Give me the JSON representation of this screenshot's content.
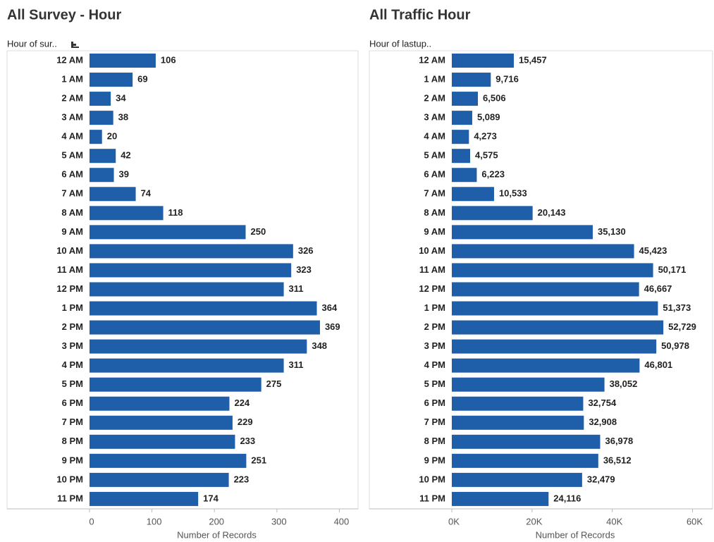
{
  "chart_data": [
    {
      "type": "bar",
      "orientation": "horizontal",
      "title": "All Survey - Hour",
      "ylabel": "Hour of sur..",
      "xlabel": "Number of Records",
      "color": "#1f5ea8",
      "categories": [
        "12 AM",
        "1 AM",
        "2 AM",
        "3 AM",
        "4 AM",
        "5 AM",
        "6 AM",
        "7 AM",
        "8 AM",
        "9 AM",
        "10 AM",
        "11 AM",
        "12 PM",
        "1 PM",
        "2 PM",
        "3 PM",
        "4 PM",
        "5 PM",
        "6 PM",
        "7 PM",
        "8 PM",
        "9 PM",
        "10 PM",
        "11 PM"
      ],
      "values": [
        106,
        69,
        34,
        38,
        20,
        42,
        39,
        74,
        118,
        250,
        326,
        323,
        311,
        364,
        369,
        348,
        311,
        275,
        224,
        229,
        233,
        251,
        223,
        174
      ],
      "xlim": [
        0,
        430
      ],
      "xticks": [
        0,
        100,
        200,
        300,
        400
      ]
    },
    {
      "type": "bar",
      "orientation": "horizontal",
      "title": "All Traffic Hour",
      "ylabel": "Hour of lastup..",
      "xlabel": "Number of Records",
      "color": "#1f5ea8",
      "categories": [
        "12 AM",
        "1 AM",
        "2 AM",
        "3 AM",
        "4 AM",
        "5 AM",
        "6 AM",
        "7 AM",
        "8 AM",
        "9 AM",
        "10 AM",
        "11 AM",
        "12 PM",
        "1 PM",
        "2 PM",
        "3 PM",
        "4 PM",
        "5 PM",
        "6 PM",
        "7 PM",
        "8 PM",
        "9 PM",
        "10 PM",
        "11 PM"
      ],
      "values": [
        15457,
        9716,
        6506,
        5089,
        4273,
        4575,
        6223,
        10533,
        20143,
        35130,
        45423,
        50171,
        46667,
        51373,
        52729,
        50978,
        46801,
        38052,
        32754,
        32908,
        36978,
        36512,
        32479,
        24116
      ],
      "value_labels": [
        "15,457",
        "9,716",
        "6,506",
        "5,089",
        "4,273",
        "4,575",
        "6,223",
        "10,533",
        "20,143",
        "35,130",
        "45,423",
        "50,171",
        "46,667",
        "51,373",
        "52,729",
        "50,978",
        "46,801",
        "38,052",
        "32,754",
        "32,908",
        "36,978",
        "36,512",
        "32,479",
        "24,116"
      ],
      "xlim": [
        0,
        65000
      ],
      "xticks": [
        {
          "value": 0,
          "label": "0K"
        },
        {
          "value": 20000,
          "label": "20K"
        },
        {
          "value": 40000,
          "label": "40K"
        },
        {
          "value": 60000,
          "label": "60K"
        }
      ]
    }
  ]
}
